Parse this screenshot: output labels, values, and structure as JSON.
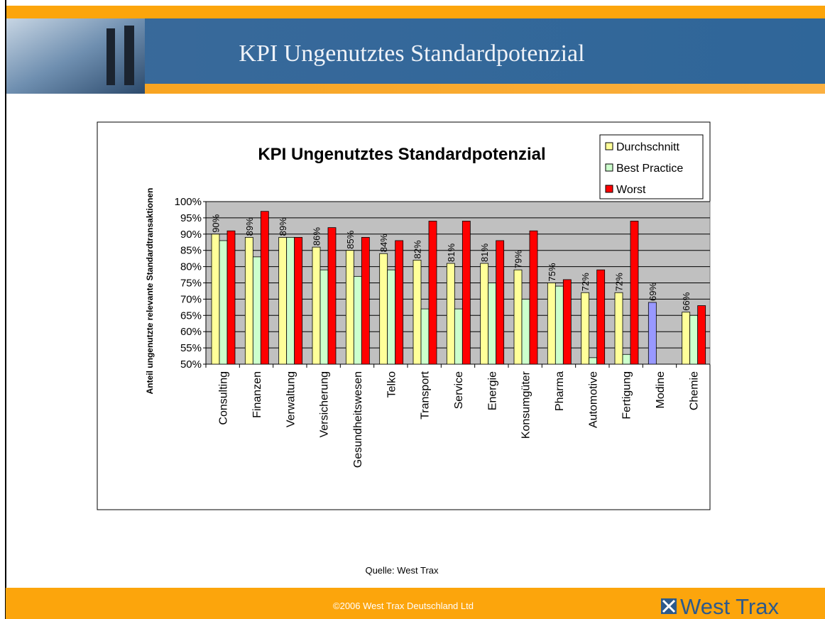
{
  "header": {
    "title": "KPI Ungenutztes Standardpotenzial"
  },
  "chart_data": {
    "type": "bar",
    "title": "KPI Ungenutztes Standardpotenzial",
    "y_label": "Anteil ungenutzte relevante Standardtransaktionen",
    "categories": [
      "Consulting",
      "Finanzen",
      "Verwaltung",
      "Versicherung",
      "Gesundheitswesen",
      "Telko",
      "Transport",
      "Service",
      "Energie",
      "Konsumgüter",
      "Pharma",
      "Automotive",
      "Fertigung",
      "Modine",
      "Chemie"
    ],
    "series": [
      {
        "name": "Durchschnitt",
        "color": "#ffff99",
        "values": [
          90,
          89,
          89,
          86,
          85,
          84,
          82,
          81,
          81,
          79,
          75,
          72,
          72,
          69,
          66
        ],
        "value_labels": [
          "90%",
          "89%",
          "89%",
          "86%",
          "85%",
          "84%",
          "82%",
          "81%",
          "81%",
          "79%",
          "75%",
          "72%",
          "72%",
          "69%",
          "66%"
        ],
        "point_colors": [
          null,
          null,
          null,
          null,
          null,
          null,
          null,
          null,
          null,
          null,
          null,
          null,
          null,
          "#9999ff",
          null
        ]
      },
      {
        "name": "Best Practice",
        "color": "#ccffcc",
        "values": [
          88,
          83,
          89,
          79,
          77,
          79,
          67,
          67,
          75,
          70,
          74,
          52,
          53,
          null,
          65
        ]
      },
      {
        "name": "Worst",
        "color": "#ff0000",
        "values": [
          91,
          97,
          89,
          92,
          89,
          88,
          94,
          94,
          88,
          91,
          76,
          79,
          94,
          null,
          68
        ]
      }
    ],
    "ylim": [
      50,
      100
    ],
    "yticks": [
      {
        "value": 50,
        "label": "50%"
      },
      {
        "value": 55,
        "label": "55%"
      },
      {
        "value": 60,
        "label": "60%"
      },
      {
        "value": 65,
        "label": "65%"
      },
      {
        "value": 70,
        "label": "70%"
      },
      {
        "value": 75,
        "label": "75%"
      },
      {
        "value": 80,
        "label": "80%"
      },
      {
        "value": 85,
        "label": "85%"
      },
      {
        "value": 90,
        "label": "90%"
      },
      {
        "value": 95,
        "label": "95%"
      },
      {
        "value": 100,
        "label": "100%"
      }
    ],
    "grid": true,
    "legend": "top-right"
  },
  "source": "Quelle: West Trax",
  "footer": {
    "copyright": "©2006 West Trax Deutschland Ltd",
    "logo": "West Trax"
  }
}
